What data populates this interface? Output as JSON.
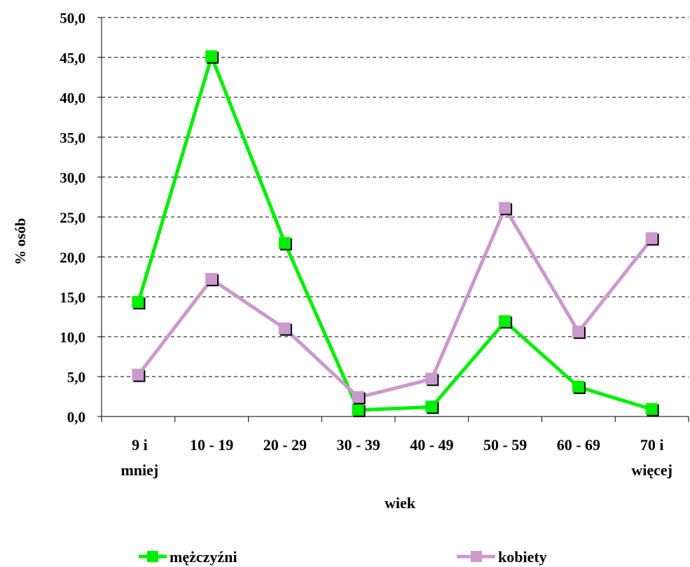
{
  "chart_data": {
    "type": "line",
    "xlabel": "wiek",
    "ylabel": "% osób",
    "ylim": [
      0,
      50
    ],
    "ytick_step": 5,
    "ytick_labels": [
      "0,0",
      "5,0",
      "10,0",
      "15,0",
      "20,0",
      "25,0",
      "30,0",
      "35,0",
      "40,0",
      "45,0",
      "50,0"
    ],
    "categories": [
      [
        "9 i",
        "mniej"
      ],
      [
        "10 - 19"
      ],
      [
        "20 - 29"
      ],
      [
        "30 - 39"
      ],
      [
        "40 - 49"
      ],
      [
        "50 - 59"
      ],
      [
        "60 - 69"
      ],
      [
        "70 i",
        "więcej"
      ]
    ],
    "grid": "horizontal dashed",
    "legend_position": "bottom",
    "series": [
      {
        "name": "mężczyźni",
        "color": "#00ee00",
        "marker": "square",
        "values": [
          14.3,
          45.1,
          21.7,
          0.8,
          1.2,
          11.9,
          3.7,
          0.9
        ]
      },
      {
        "name": "kobiety",
        "color": "#cc99cc",
        "marker": "square",
        "values": [
          5.2,
          17.2,
          11.0,
          2.4,
          4.7,
          26.1,
          10.6,
          22.3
        ]
      }
    ]
  }
}
